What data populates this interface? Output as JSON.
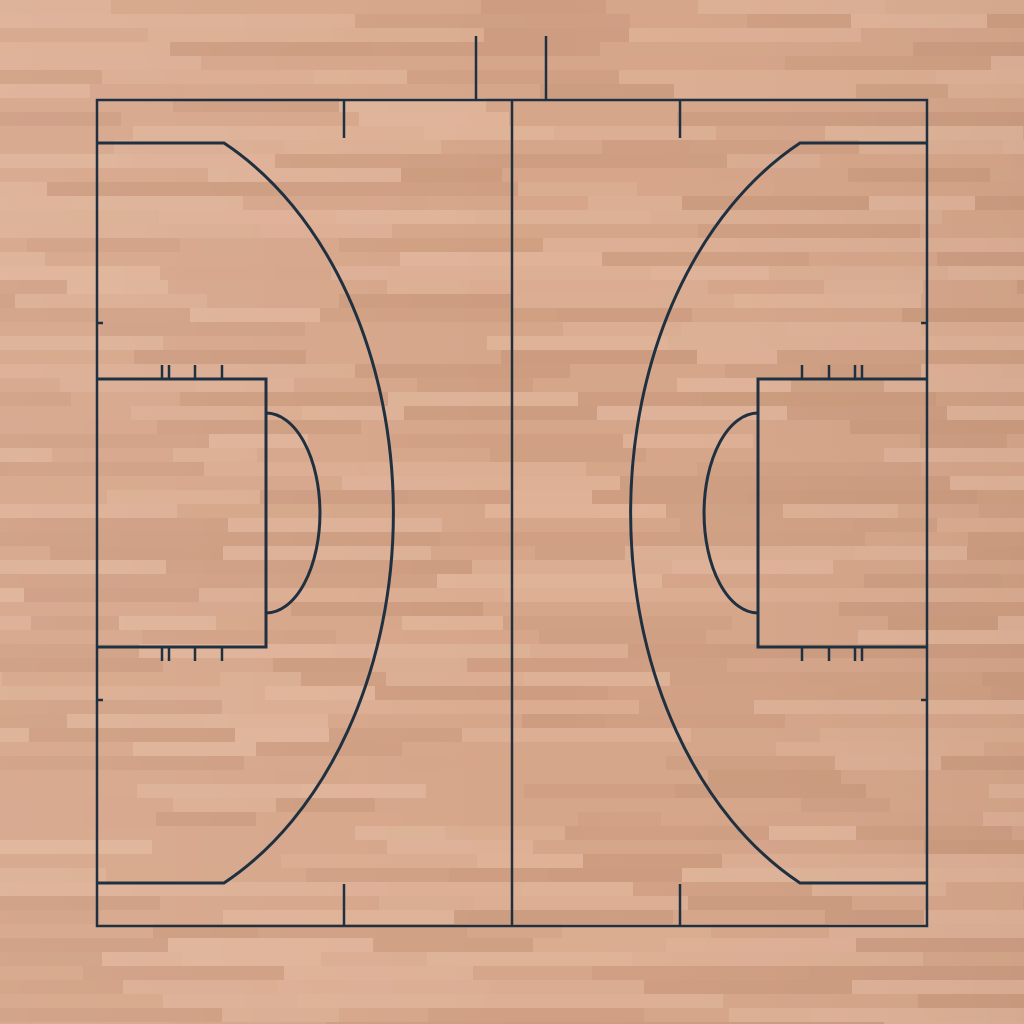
{
  "scene": {
    "name": "basketball-court",
    "view": "top-down"
  },
  "colors": {
    "floor_base": "#d6a68a",
    "floor_light": "#e2b89e",
    "floor_dark": "#c9987c",
    "line": "#1f3040"
  },
  "court": {
    "markings": [
      "sideline-top",
      "sideline-bottom",
      "baseline-left",
      "baseline-right",
      "half-court-line",
      "three-point-arc-left",
      "three-point-arc-right",
      "key-left",
      "key-right",
      "free-throw-semicircle-left",
      "free-throw-semicircle-right",
      "hash-marks",
      "bench-area-marks"
    ],
    "lane_hash_marks_per_side": 3
  }
}
